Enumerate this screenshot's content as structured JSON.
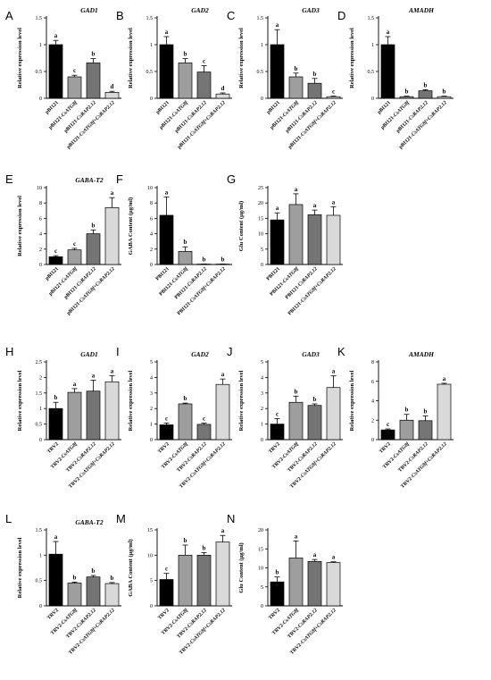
{
  "style": {
    "bar_colors": [
      "#000000",
      "#9e9e9e",
      "#757575",
      "#d9d9d9"
    ]
  },
  "chart_data": [
    {
      "panel": "A",
      "type": "bar",
      "title": "GAD1",
      "ylabel": "Relative expression level",
      "categories": [
        "pBI121",
        "pBI121-CsATG8f",
        "pBI121-CsRAP2.12",
        "pBI121-CsATG8f+CsRAP2.12"
      ],
      "values": [
        1.0,
        0.4,
        0.66,
        0.11
      ],
      "errors": [
        0.08,
        0.03,
        0.08,
        0.02
      ],
      "sig": [
        "a",
        "c",
        "b",
        "d"
      ],
      "ylim": [
        0,
        1.5
      ],
      "yticks": [
        0.0,
        0.5,
        1.0,
        1.5
      ]
    },
    {
      "panel": "B",
      "type": "bar",
      "title": "GAD2",
      "ylabel": "Relative expression level",
      "categories": [
        "pBI121",
        "pBI121-CsATG8f",
        "pBI121-CsRAP2.12",
        "pBI121-CsATG8f+CsRAP2.12"
      ],
      "values": [
        1.0,
        0.66,
        0.49,
        0.08
      ],
      "errors": [
        0.15,
        0.08,
        0.12,
        0.02
      ],
      "sig": [
        "a",
        "b",
        "c",
        "d"
      ],
      "ylim": [
        0,
        1.5
      ],
      "yticks": [
        0.0,
        0.5,
        1.0,
        1.5
      ]
    },
    {
      "panel": "C",
      "type": "bar",
      "title": "GAD3",
      "ylabel": "Relative expression level",
      "categories": [
        "pBI121",
        "pBI121-CsATG8f",
        "pBI121-CsRAP2.12",
        "pBI121-CsATG8f+CsRAP2.12"
      ],
      "values": [
        1.0,
        0.4,
        0.28,
        0.03
      ],
      "errors": [
        0.28,
        0.07,
        0.09,
        0.01
      ],
      "sig": [
        "a",
        "b",
        "b",
        "c"
      ],
      "ylim": [
        0,
        1.5
      ],
      "yticks": [
        0.0,
        0.5,
        1.0,
        1.5
      ]
    },
    {
      "panel": "D",
      "type": "bar",
      "title": "AMADH",
      "ylabel": "Relative expression level",
      "categories": [
        "pBI121",
        "pBI121-CsATG8f",
        "pBI121-CsRAP2.12",
        "pBI121-CsATG8f+CsRAP2.12"
      ],
      "values": [
        1.0,
        0.03,
        0.14,
        0.03
      ],
      "errors": [
        0.15,
        0.01,
        0.02,
        0.01
      ],
      "sig": [
        "a",
        "b",
        "b",
        "b"
      ],
      "ylim": [
        0,
        1.5
      ],
      "yticks": [
        0.0,
        0.5,
        1.0,
        1.5
      ]
    },
    {
      "panel": "E",
      "type": "bar",
      "title": "GABA-T2",
      "ylabel": "Relative expression level",
      "categories": [
        "pBI121",
        "pBI121-CsATG8f",
        "pBI121-CsRAP2.12",
        "pBI121-CsATG8f+CsRAP2.12"
      ],
      "values": [
        1.0,
        1.9,
        4.0,
        7.4
      ],
      "errors": [
        0.15,
        0.2,
        0.5,
        1.3
      ],
      "sig": [
        "c",
        "c",
        "b",
        "a"
      ],
      "ylim": [
        0,
        10
      ],
      "yticks": [
        0,
        2,
        4,
        6,
        8,
        10
      ]
    },
    {
      "panel": "F",
      "type": "bar",
      "title": "",
      "ylabel": "GABA Content (μg/ml)",
      "categories": [
        "PBI121",
        "PBI121-CsATG8f",
        "PBI121-CsRAP2.12",
        "PBI121-CsATG8f+CsRAP2.12"
      ],
      "values": [
        6.4,
        1.7,
        0.05,
        0.05
      ],
      "errors": [
        2.4,
        0.6,
        0.02,
        0.02
      ],
      "sig": [
        "a",
        "b",
        "b",
        "b"
      ],
      "ylim": [
        0,
        10
      ],
      "yticks": [
        0,
        2,
        4,
        6,
        8,
        10
      ]
    },
    {
      "panel": "G",
      "type": "bar",
      "title": "",
      "ylabel": "Glu Content (μg/ml)",
      "categories": [
        "PBI121",
        "PBI121-CsATG8f",
        "PBI121-CsRAP2.12",
        "PBI121-CsATG8f+CsRAP2.12"
      ],
      "values": [
        14.5,
        19.5,
        16.2,
        16.0
      ],
      "errors": [
        2.3,
        3.5,
        1.5,
        2.8
      ],
      "sig": [
        "a",
        "a",
        "a",
        "a"
      ],
      "ylim": [
        0,
        25
      ],
      "yticks": [
        0,
        5,
        10,
        15,
        20,
        25
      ]
    },
    {
      "panel": "H",
      "type": "bar",
      "title": "GAD1",
      "ylabel": "Relative expression level",
      "categories": [
        "TRV2",
        "TRV2-CsATG8f",
        "TRV2-CsRAP2.12",
        "TRV2-CsATG8f+CsRAP2.12"
      ],
      "values": [
        1.0,
        1.52,
        1.56,
        1.86
      ],
      "errors": [
        0.2,
        0.12,
        0.35,
        0.2
      ],
      "sig": [
        "b",
        "a",
        "a",
        "a"
      ],
      "ylim": [
        0,
        2.5
      ],
      "yticks": [
        0.0,
        0.5,
        1.0,
        1.5,
        2.0,
        2.5
      ]
    },
    {
      "panel": "I",
      "type": "bar",
      "title": "GAD2",
      "ylabel": "Relative expression level",
      "categories": [
        "TRV2",
        "TRV2-CsATG8f",
        "TRV2-CsRAP2.12",
        "TRV2-CsATG8f+CsRAP2.12"
      ],
      "values": [
        0.95,
        2.3,
        0.98,
        3.55
      ],
      "errors": [
        0.12,
        0.05,
        0.08,
        0.35
      ],
      "sig": [
        "c",
        "b",
        "c",
        "a"
      ],
      "ylim": [
        0,
        5
      ],
      "yticks": [
        0,
        1,
        2,
        3,
        4,
        5
      ]
    },
    {
      "panel": "J",
      "type": "bar",
      "title": "GAD3",
      "ylabel": "Relative expression level",
      "categories": [
        "TRV2",
        "TRV2-CsATG8f",
        "TRV2-CsRAP2.12",
        "TRV2-CsATG8f+CsRAP2.12"
      ],
      "values": [
        1.0,
        2.4,
        2.2,
        3.35
      ],
      "errors": [
        0.35,
        0.4,
        0.1,
        0.75
      ],
      "sig": [
        "c",
        "b",
        "b",
        "a"
      ],
      "ylim": [
        0,
        5
      ],
      "yticks": [
        0,
        1,
        2,
        3,
        4,
        5
      ]
    },
    {
      "panel": "K",
      "type": "bar",
      "title": "AMADH",
      "ylabel": "Relative expression level",
      "categories": [
        "TRV2",
        "TRV2-CsATG8f",
        "TRV2-CsRAP2.12",
        "TRV2-CsATG8f+CsRAP2.12"
      ],
      "values": [
        1.0,
        2.0,
        1.95,
        5.7
      ],
      "errors": [
        0.1,
        0.6,
        0.5,
        0.1
      ],
      "sig": [
        "c",
        "b",
        "b",
        "a"
      ],
      "ylim": [
        0,
        8
      ],
      "yticks": [
        0,
        2,
        4,
        6,
        8
      ]
    },
    {
      "panel": "L",
      "type": "bar",
      "title": "GABA-T2",
      "ylabel": "Relative expression level",
      "categories": [
        "TRV2",
        "TRV2-CsATG8f",
        "TRV2-CsRAP2.12",
        "TRV2-CsATG8f+CsRAP2.12"
      ],
      "values": [
        1.02,
        0.45,
        0.57,
        0.44
      ],
      "errors": [
        0.25,
        0.02,
        0.03,
        0.02
      ],
      "sig": [
        "a",
        "b",
        "b",
        "b"
      ],
      "ylim": [
        0,
        1.5
      ],
      "yticks": [
        0.0,
        0.5,
        1.0,
        1.5
      ]
    },
    {
      "panel": "M",
      "type": "bar",
      "title": "",
      "ylabel": "GABA Content (μg/ml)",
      "categories": [
        "TRV2",
        "TRV2-CsATG8f",
        "TRV2-CsRAP2.12",
        "TRV2-CsATG8f+CsRAP2.12"
      ],
      "values": [
        5.2,
        10.0,
        10.0,
        12.6
      ],
      "errors": [
        1.2,
        2.0,
        0.5,
        1.3
      ],
      "sig": [
        "c",
        "b",
        "b",
        "a"
      ],
      "ylim": [
        0,
        15
      ],
      "yticks": [
        0,
        5,
        10,
        15
      ]
    },
    {
      "panel": "N",
      "type": "bar",
      "title": "",
      "ylabel": "Glu Content (μg/ml)",
      "categories": [
        "TRV2",
        "TRV2-CsATG8f",
        "TRV2-CsRAP2.12",
        "TRV2-CsATG8f+CsRAP2.12"
      ],
      "values": [
        6.3,
        12.6,
        11.7,
        11.4
      ],
      "errors": [
        1.3,
        4.5,
        0.5,
        0.2
      ],
      "sig": [
        "b",
        "a",
        "a",
        "a"
      ],
      "ylim": [
        0,
        20
      ],
      "yticks": [
        0,
        5,
        10,
        15,
        20
      ]
    }
  ]
}
